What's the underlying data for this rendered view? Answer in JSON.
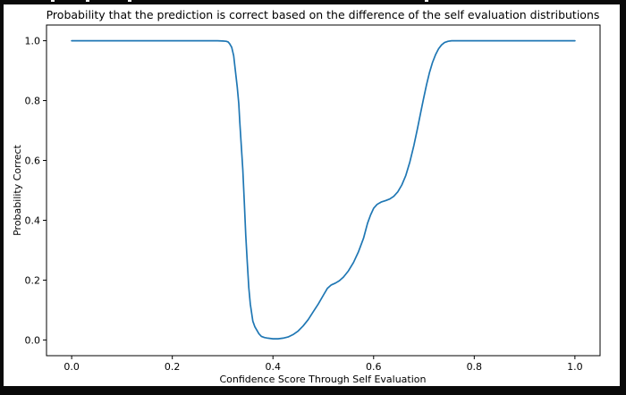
{
  "figure": {
    "background_color": "#ffffff",
    "border_color": "#0a0a0a",
    "top_edge_specks_x": [
      57,
      96,
      143,
      475
    ]
  },
  "chart_data": {
    "type": "line",
    "title": "Probability that the prediction is correct based on the difference of the self evaluation distributions",
    "xlabel": "Confidence Score Through Self Evaluation",
    "ylabel": "Probability Correct",
    "xlim": [
      -0.05,
      1.05
    ],
    "ylim": [
      -0.0525,
      1.0525
    ],
    "xticks": [
      0.0,
      0.2,
      0.4,
      0.6,
      0.8,
      1.0
    ],
    "yticks": [
      0.0,
      0.2,
      0.4,
      0.6,
      0.8,
      1.0
    ],
    "xticklabels": [
      "0.0",
      "0.2",
      "0.4",
      "0.6",
      "0.8",
      "1.0"
    ],
    "yticklabels": [
      "0.0",
      "0.2",
      "0.4",
      "0.6",
      "0.8",
      "1.0"
    ],
    "grid": false,
    "legend": null,
    "line_color": "#1f77b4",
    "spine_color": "#000000",
    "series": [
      {
        "name": "probability-correct-curve",
        "points": [
          [
            0.0,
            1.0
          ],
          [
            0.03,
            1.0
          ],
          [
            0.06,
            1.0
          ],
          [
            0.09,
            1.0
          ],
          [
            0.12,
            1.0
          ],
          [
            0.15,
            1.0
          ],
          [
            0.18,
            1.0
          ],
          [
            0.21,
            1.0
          ],
          [
            0.24,
            1.0
          ],
          [
            0.27,
            1.0
          ],
          [
            0.29,
            1.0
          ],
          [
            0.3,
            0.999
          ],
          [
            0.307,
            0.998
          ],
          [
            0.311,
            0.996
          ],
          [
            0.314,
            0.99
          ],
          [
            0.318,
            0.978
          ],
          [
            0.322,
            0.95
          ],
          [
            0.325,
            0.905
          ],
          [
            0.329,
            0.845
          ],
          [
            0.332,
            0.79
          ],
          [
            0.334,
            0.73
          ],
          [
            0.337,
            0.65
          ],
          [
            0.34,
            0.57
          ],
          [
            0.343,
            0.46
          ],
          [
            0.346,
            0.35
          ],
          [
            0.349,
            0.26
          ],
          [
            0.352,
            0.175
          ],
          [
            0.355,
            0.12
          ],
          [
            0.36,
            0.063
          ],
          [
            0.364,
            0.044
          ],
          [
            0.368,
            0.033
          ],
          [
            0.372,
            0.021
          ],
          [
            0.377,
            0.012
          ],
          [
            0.383,
            0.008
          ],
          [
            0.39,
            0.006
          ],
          [
            0.4,
            0.004
          ],
          [
            0.41,
            0.004
          ],
          [
            0.42,
            0.006
          ],
          [
            0.43,
            0.01
          ],
          [
            0.44,
            0.018
          ],
          [
            0.45,
            0.03
          ],
          [
            0.46,
            0.047
          ],
          [
            0.47,
            0.068
          ],
          [
            0.48,
            0.094
          ],
          [
            0.49,
            0.12
          ],
          [
            0.5,
            0.149
          ],
          [
            0.508,
            0.172
          ],
          [
            0.516,
            0.184
          ],
          [
            0.524,
            0.19
          ],
          [
            0.532,
            0.198
          ],
          [
            0.54,
            0.21
          ],
          [
            0.55,
            0.231
          ],
          [
            0.56,
            0.259
          ],
          [
            0.57,
            0.295
          ],
          [
            0.58,
            0.34
          ],
          [
            0.588,
            0.39
          ],
          [
            0.594,
            0.418
          ],
          [
            0.6,
            0.44
          ],
          [
            0.607,
            0.453
          ],
          [
            0.615,
            0.461
          ],
          [
            0.624,
            0.466
          ],
          [
            0.632,
            0.471
          ],
          [
            0.64,
            0.48
          ],
          [
            0.648,
            0.495
          ],
          [
            0.656,
            0.518
          ],
          [
            0.664,
            0.55
          ],
          [
            0.672,
            0.595
          ],
          [
            0.68,
            0.65
          ],
          [
            0.687,
            0.705
          ],
          [
            0.693,
            0.755
          ],
          [
            0.699,
            0.805
          ],
          [
            0.705,
            0.852
          ],
          [
            0.711,
            0.893
          ],
          [
            0.717,
            0.927
          ],
          [
            0.723,
            0.953
          ],
          [
            0.729,
            0.973
          ],
          [
            0.735,
            0.986
          ],
          [
            0.741,
            0.994
          ],
          [
            0.748,
            0.998
          ],
          [
            0.755,
            1.0
          ],
          [
            0.77,
            1.0
          ],
          [
            0.79,
            1.0
          ],
          [
            0.82,
            1.0
          ],
          [
            0.85,
            1.0
          ],
          [
            0.88,
            1.0
          ],
          [
            0.91,
            1.0
          ],
          [
            0.94,
            1.0
          ],
          [
            0.97,
            1.0
          ],
          [
            1.0,
            1.0
          ]
        ]
      }
    ]
  }
}
